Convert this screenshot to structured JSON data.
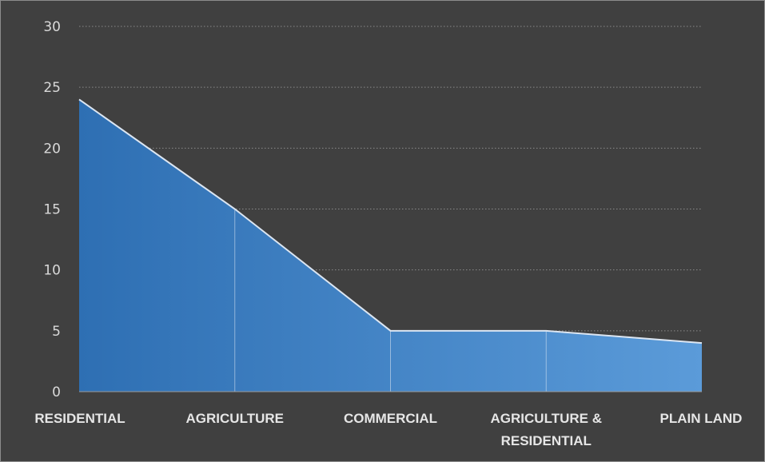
{
  "chart_data": {
    "type": "area",
    "categories": [
      "RESIDENTIAL",
      "AGRICULTURE",
      "COMMERCIAL",
      "AGRICULTURE & RESIDENTIAL",
      "PLAIN LAND"
    ],
    "category_lines": [
      [
        "RESIDENTIAL"
      ],
      [
        "AGRICULTURE"
      ],
      [
        "COMMERCIAL"
      ],
      [
        "AGRICULTURE &",
        "RESIDENTIAL"
      ],
      [
        "PLAIN LAND"
      ]
    ],
    "values": [
      24,
      15,
      5,
      5,
      4
    ],
    "ylim": [
      0,
      30
    ],
    "yticks": [
      "0",
      "5",
      "10",
      "15",
      "20",
      "25",
      "30"
    ],
    "grid": "dotted horizontal",
    "legend": "none",
    "colors": {
      "background": "#404040",
      "fill_start": "#2e6fb3",
      "fill_end": "#5b9bd9",
      "outline": "#dce6f2",
      "grid": "#8a8a8a",
      "text": "#e6e6e6"
    }
  }
}
